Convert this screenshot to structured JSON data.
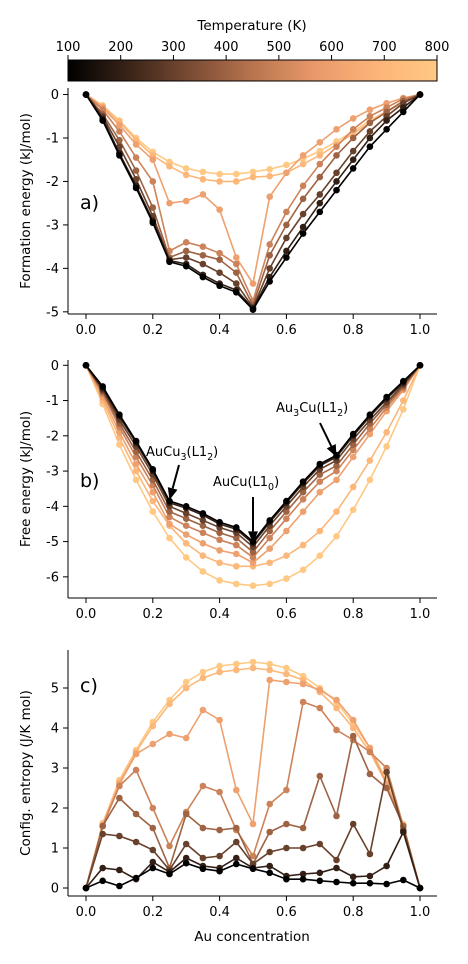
{
  "colorbar": {
    "title": "Temperature (K)",
    "ticks": [
      100,
      200,
      300,
      400,
      500,
      600,
      700,
      800
    ],
    "range": [
      100,
      800
    ],
    "colormap": [
      "#000000",
      "#3a2418",
      "#7a4c34",
      "#b8744e",
      "#e8986a",
      "#fcb478",
      "#ffc883"
    ]
  },
  "x": [
    0,
    0.05,
    0.1,
    0.15,
    0.2,
    0.25,
    0.3,
    0.35,
    0.4,
    0.45,
    0.5,
    0.55,
    0.6,
    0.65,
    0.7,
    0.75,
    0.8,
    0.85,
    0.9,
    0.95,
    1.0
  ],
  "temperatures": [
    100,
    200,
    300,
    400,
    500,
    600,
    700,
    800
  ],
  "xlabel": "Au concentration",
  "xticks": [
    "0.0",
    "0.2",
    "0.4",
    "0.6",
    "0.8",
    "1.0"
  ],
  "chart_data": [
    {
      "type": "line",
      "panel_label": "a)",
      "ylabel": "Formation energy (kJ/mol)",
      "ylim": [
        -5.05,
        0.15
      ],
      "yticks": [
        0,
        -1,
        -2,
        -3,
        -4,
        -5
      ],
      "series": [
        {
          "values": [
            0,
            -0.6,
            -1.4,
            -2.15,
            -2.95,
            -3.85,
            -3.95,
            -4.2,
            -4.4,
            -4.55,
            -4.95,
            -4.3,
            -3.75,
            -3.2,
            -2.7,
            -2.2,
            -1.7,
            -1.2,
            -0.8,
            -0.4,
            0
          ]
        },
        {
          "values": [
            0,
            -0.55,
            -1.35,
            -2.1,
            -2.9,
            -3.82,
            -3.9,
            -4.15,
            -4.35,
            -4.5,
            -4.92,
            -4.2,
            -3.6,
            -3.05,
            -2.5,
            -2.0,
            -1.5,
            -1.0,
            -0.6,
            -0.3,
            0
          ]
        },
        {
          "values": [
            0,
            -0.5,
            -1.2,
            -1.95,
            -2.8,
            -3.8,
            -3.75,
            -3.9,
            -4.1,
            -4.35,
            -4.9,
            -4.0,
            -3.3,
            -2.75,
            -2.3,
            -1.8,
            -1.3,
            -0.85,
            -0.5,
            -0.2,
            0
          ]
        },
        {
          "values": [
            0,
            -0.45,
            -1.05,
            -1.75,
            -2.6,
            -3.75,
            -3.6,
            -3.7,
            -3.8,
            -4.1,
            -4.85,
            -3.7,
            -3.0,
            -2.4,
            -1.9,
            -1.4,
            -1.0,
            -0.65,
            -0.4,
            -0.15,
            0
          ]
        },
        {
          "values": [
            0,
            -0.35,
            -0.85,
            -1.45,
            -2.0,
            -3.6,
            -3.4,
            -3.5,
            -3.65,
            -3.9,
            -4.75,
            -3.45,
            -2.7,
            -2.1,
            -1.6,
            -1.2,
            -0.8,
            -0.5,
            -0.3,
            -0.1,
            0
          ]
        },
        {
          "values": [
            0,
            -0.3,
            -0.7,
            -1.15,
            -1.5,
            -2.5,
            -2.45,
            -2.3,
            -2.65,
            -3.75,
            -4.35,
            -2.35,
            -1.8,
            -1.4,
            -1.1,
            -0.8,
            -0.55,
            -0.35,
            -0.2,
            -0.08,
            0
          ]
        },
        {
          "values": [
            0,
            -0.27,
            -0.63,
            -1.05,
            -1.4,
            -1.65,
            -1.85,
            -1.95,
            -2.0,
            -2.0,
            -1.9,
            -1.88,
            -1.8,
            -1.6,
            -1.4,
            -1.15,
            -0.9,
            -0.65,
            -0.4,
            -0.18,
            0
          ]
        },
        {
          "values": [
            0,
            -0.25,
            -0.6,
            -1.0,
            -1.32,
            -1.55,
            -1.7,
            -1.78,
            -1.83,
            -1.83,
            -1.78,
            -1.72,
            -1.62,
            -1.48,
            -1.3,
            -1.08,
            -0.85,
            -0.6,
            -0.38,
            -0.17,
            0
          ]
        }
      ]
    },
    {
      "type": "line",
      "panel_label": "b)",
      "ylabel": "Free energy (kJ/mol)",
      "ylim": [
        -6.6,
        0.15
      ],
      "yticks": [
        0,
        -1,
        -2,
        -3,
        -4,
        -5,
        -6
      ],
      "annotations": [
        {
          "text": "AuCu",
          "sub": "3",
          "suffix": "(L1",
          "sub2": "2",
          "end": ")",
          "target": [
            0.25,
            -3.82
          ]
        },
        {
          "text": "AuCu",
          "sub": "",
          "suffix": "(L1",
          "sub2": "0",
          "end": ")",
          "target": [
            0.5,
            -5.05
          ]
        },
        {
          "text": "Au",
          "sub": "3",
          "suffix": "Cu(L1",
          "sub2": "2",
          "end": ")",
          "target": [
            0.75,
            -2.6
          ]
        }
      ],
      "series": [
        {
          "values": [
            0,
            -0.6,
            -1.4,
            -2.15,
            -2.95,
            -3.85,
            -4.0,
            -4.2,
            -4.45,
            -4.6,
            -5.0,
            -4.4,
            -3.85,
            -3.3,
            -2.8,
            -2.55,
            -1.95,
            -1.4,
            -0.9,
            -0.45,
            0
          ]
        },
        {
          "values": [
            0,
            -0.65,
            -1.45,
            -2.2,
            -3.0,
            -3.9,
            -4.05,
            -4.25,
            -4.5,
            -4.65,
            -5.05,
            -4.45,
            -3.9,
            -3.35,
            -2.85,
            -2.6,
            -2.0,
            -1.45,
            -0.95,
            -0.5,
            0
          ]
        },
        {
          "values": [
            0,
            -0.7,
            -1.55,
            -2.3,
            -3.1,
            -4.0,
            -4.2,
            -4.4,
            -4.6,
            -4.75,
            -5.15,
            -4.55,
            -4.0,
            -3.45,
            -2.95,
            -2.7,
            -2.1,
            -1.55,
            -1.05,
            -0.55,
            0
          ]
        },
        {
          "values": [
            0,
            -0.75,
            -1.65,
            -2.45,
            -3.25,
            -4.15,
            -4.35,
            -4.55,
            -4.75,
            -4.9,
            -5.3,
            -4.7,
            -4.15,
            -3.6,
            -3.1,
            -2.85,
            -2.25,
            -1.65,
            -1.12,
            -0.6,
            0
          ]
        },
        {
          "values": [
            0,
            -0.8,
            -1.75,
            -2.6,
            -3.4,
            -4.3,
            -4.55,
            -4.75,
            -4.95,
            -5.1,
            -5.45,
            -4.9,
            -4.35,
            -3.8,
            -3.3,
            -3.0,
            -2.4,
            -1.8,
            -1.2,
            -0.65,
            0
          ]
        },
        {
          "values": [
            0,
            -0.9,
            -1.9,
            -2.8,
            -3.6,
            -4.5,
            -4.8,
            -5.05,
            -5.25,
            -5.35,
            -5.6,
            -5.2,
            -4.7,
            -4.15,
            -3.6,
            -3.25,
            -2.6,
            -1.95,
            -1.3,
            -0.7,
            0
          ]
        },
        {
          "values": [
            0,
            -1.0,
            -2.05,
            -3.0,
            -3.85,
            -4.55,
            -5.05,
            -5.4,
            -5.6,
            -5.7,
            -5.7,
            -5.6,
            -5.4,
            -5.1,
            -4.7,
            -4.15,
            -3.45,
            -2.7,
            -1.9,
            -1.0,
            0
          ]
        },
        {
          "values": [
            0,
            -1.1,
            -2.25,
            -3.25,
            -4.15,
            -4.9,
            -5.45,
            -5.85,
            -6.1,
            -6.2,
            -6.25,
            -6.2,
            -6.05,
            -5.8,
            -5.4,
            -4.85,
            -4.1,
            -3.25,
            -2.3,
            -1.25,
            0
          ]
        }
      ]
    },
    {
      "type": "line",
      "panel_label": "c)",
      "ylabel": "Config. entropy (J/K mol)",
      "ylim": [
        -0.2,
        5.95
      ],
      "yticks": [
        0,
        1,
        2,
        3,
        4,
        5
      ],
      "series": [
        {
          "values": [
            0,
            0.18,
            0.05,
            0.25,
            0.5,
            0.35,
            0.62,
            0.48,
            0.42,
            0.6,
            0.48,
            0.38,
            0.22,
            0.22,
            0.18,
            0.15,
            0.12,
            0.12,
            0.1,
            0.2,
            0
          ]
        },
        {
          "values": [
            0,
            0.5,
            0.45,
            0.22,
            0.65,
            0.4,
            0.75,
            0.55,
            0.5,
            0.75,
            0.5,
            0.55,
            0.3,
            0.35,
            0.38,
            0.5,
            0.28,
            0.3,
            0.55,
            1.4,
            0
          ]
        },
        {
          "values": [
            0,
            1.35,
            1.3,
            1.15,
            0.95,
            0.45,
            1.1,
            0.75,
            0.8,
            1.15,
            0.6,
            0.9,
            1.0,
            1.0,
            1.1,
            0.7,
            1.6,
            0.85,
            2.9,
            1.45,
            0
          ]
        },
        {
          "values": [
            0,
            1.55,
            2.25,
            1.85,
            1.5,
            0.5,
            1.85,
            1.5,
            1.45,
            1.5,
            0.6,
            1.4,
            1.6,
            1.5,
            2.8,
            1.8,
            3.8,
            2.85,
            2.5,
            1.55,
            0
          ]
        },
        {
          "values": [
            0,
            1.55,
            2.55,
            2.95,
            2.0,
            1.05,
            1.9,
            2.55,
            2.4,
            1.45,
            0.8,
            2.1,
            2.45,
            4.65,
            4.5,
            3.95,
            3.7,
            3.4,
            3.0,
            1.55,
            0
          ]
        },
        {
          "values": [
            0,
            1.55,
            2.6,
            3.35,
            3.6,
            3.85,
            3.75,
            4.45,
            4.2,
            2.45,
            1.6,
            5.2,
            5.15,
            5.1,
            4.95,
            4.7,
            4.2,
            3.5,
            2.6,
            1.55,
            0
          ]
        },
        {
          "values": [
            0,
            1.6,
            2.65,
            3.4,
            4.05,
            4.6,
            5.0,
            5.25,
            5.4,
            5.45,
            5.5,
            5.45,
            5.35,
            5.2,
            4.9,
            4.5,
            4.0,
            3.4,
            2.6,
            1.55,
            0
          ]
        },
        {
          "values": [
            0,
            1.62,
            2.7,
            3.45,
            4.15,
            4.7,
            5.15,
            5.4,
            5.55,
            5.6,
            5.65,
            5.6,
            5.5,
            5.3,
            5.0,
            4.65,
            4.1,
            3.5,
            2.7,
            1.6,
            0
          ]
        }
      ]
    }
  ]
}
